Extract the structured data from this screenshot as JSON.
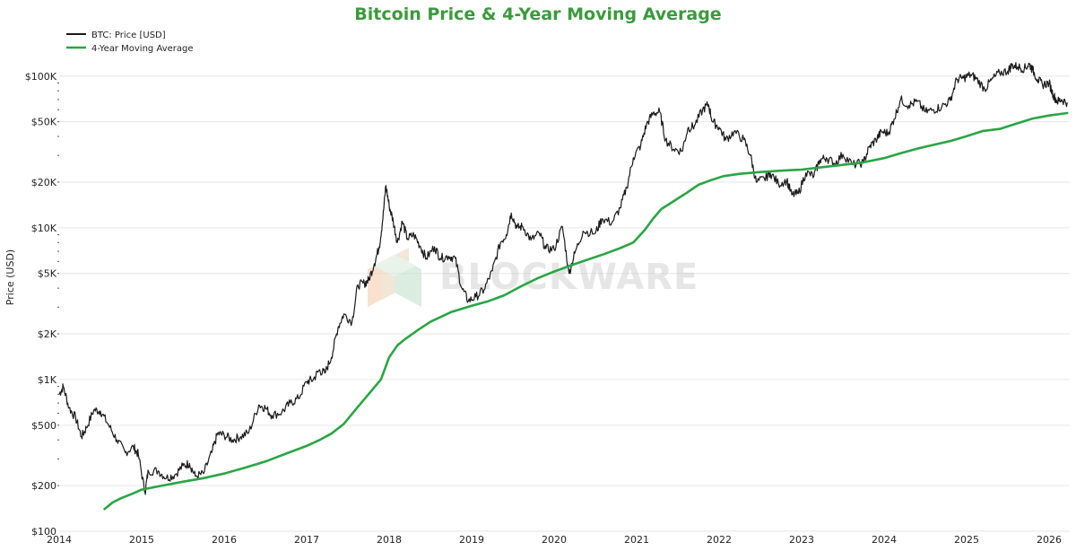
{
  "chart_data": {
    "type": "line",
    "title": "Bitcoin Price & 4-Year Moving Average",
    "xlabel": "",
    "ylabel": "Price (USD)",
    "yscale": "log",
    "xlim": [
      2014.0,
      2026.25
    ],
    "ylim": [
      100,
      150000
    ],
    "x_ticks": [
      {
        "v": 2014,
        "label": "2014"
      },
      {
        "v": 2015,
        "label": "2015"
      },
      {
        "v": 2016,
        "label": "2016"
      },
      {
        "v": 2017,
        "label": "2017"
      },
      {
        "v": 2018,
        "label": "2018"
      },
      {
        "v": 2019,
        "label": "2019"
      },
      {
        "v": 2020,
        "label": "2020"
      },
      {
        "v": 2021,
        "label": "2021"
      },
      {
        "v": 2022,
        "label": "2022"
      },
      {
        "v": 2023,
        "label": "2023"
      },
      {
        "v": 2024,
        "label": "2024"
      },
      {
        "v": 2025,
        "label": "2025"
      },
      {
        "v": 2026,
        "label": "2026"
      }
    ],
    "y_ticks": [
      {
        "v": 100,
        "label": "$100"
      },
      {
        "v": 200,
        "label": "$200"
      },
      {
        "v": 500,
        "label": "$500"
      },
      {
        "v": 1000,
        "label": "$1K"
      },
      {
        "v": 2000,
        "label": "$2K"
      },
      {
        "v": 5000,
        "label": "$5K"
      },
      {
        "v": 10000,
        "label": "$10K"
      },
      {
        "v": 20000,
        "label": "$20K"
      },
      {
        "v": 50000,
        "label": "$50K"
      },
      {
        "v": 100000,
        "label": "$100K"
      }
    ],
    "legend_position": "top-left",
    "series": [
      {
        "name": "BTC: Price [USD]",
        "color": "#1a1a1a",
        "points": [
          [
            2014.0,
            800
          ],
          [
            2014.05,
            900
          ],
          [
            2014.12,
            650
          ],
          [
            2014.2,
            560
          ],
          [
            2014.27,
            420
          ],
          [
            2014.33,
            480
          ],
          [
            2014.42,
            630
          ],
          [
            2014.5,
            620
          ],
          [
            2014.6,
            500
          ],
          [
            2014.7,
            400
          ],
          [
            2014.8,
            330
          ],
          [
            2014.9,
            360
          ],
          [
            2014.96,
            320
          ],
          [
            2015.04,
            180
          ],
          [
            2015.08,
            250
          ],
          [
            2015.2,
            250
          ],
          [
            2015.3,
            225
          ],
          [
            2015.4,
            235
          ],
          [
            2015.5,
            270
          ],
          [
            2015.58,
            280
          ],
          [
            2015.65,
            230
          ],
          [
            2015.75,
            240
          ],
          [
            2015.85,
            330
          ],
          [
            2015.92,
            440
          ],
          [
            2016.0,
            430
          ],
          [
            2016.1,
            400
          ],
          [
            2016.2,
            420
          ],
          [
            2016.3,
            450
          ],
          [
            2016.42,
            680
          ],
          [
            2016.5,
            650
          ],
          [
            2016.58,
            580
          ],
          [
            2016.7,
            610
          ],
          [
            2016.8,
            700
          ],
          [
            2016.9,
            750
          ],
          [
            2017.0,
            970
          ],
          [
            2017.08,
            1000
          ],
          [
            2017.15,
            1150
          ],
          [
            2017.22,
            1100
          ],
          [
            2017.3,
            1400
          ],
          [
            2017.38,
            2200
          ],
          [
            2017.45,
            2700
          ],
          [
            2017.55,
            2400
          ],
          [
            2017.62,
            4200
          ],
          [
            2017.7,
            4300
          ],
          [
            2017.75,
            4500
          ],
          [
            2017.82,
            5800
          ],
          [
            2017.88,
            7500
          ],
          [
            2017.92,
            11000
          ],
          [
            2017.96,
            19000
          ],
          [
            2018.0,
            14000
          ],
          [
            2018.05,
            11000
          ],
          [
            2018.1,
            8000
          ],
          [
            2018.16,
            11000
          ],
          [
            2018.22,
            8500
          ],
          [
            2018.3,
            9000
          ],
          [
            2018.38,
            7500
          ],
          [
            2018.45,
            6300
          ],
          [
            2018.55,
            7500
          ],
          [
            2018.62,
            6300
          ],
          [
            2018.72,
            6500
          ],
          [
            2018.8,
            6300
          ],
          [
            2018.88,
            4000
          ],
          [
            2018.96,
            3300
          ],
          [
            2019.05,
            3500
          ],
          [
            2019.15,
            3900
          ],
          [
            2019.25,
            5200
          ],
          [
            2019.35,
            8000
          ],
          [
            2019.42,
            9000
          ],
          [
            2019.48,
            12500
          ],
          [
            2019.55,
            10000
          ],
          [
            2019.62,
            10200
          ],
          [
            2019.72,
            8300
          ],
          [
            2019.82,
            9200
          ],
          [
            2019.9,
            7300
          ],
          [
            2020.0,
            7200
          ],
          [
            2020.1,
            10200
          ],
          [
            2020.18,
            5000
          ],
          [
            2020.25,
            6800
          ],
          [
            2020.35,
            9500
          ],
          [
            2020.5,
            9200
          ],
          [
            2020.58,
            11500
          ],
          [
            2020.7,
            10800
          ],
          [
            2020.8,
            13500
          ],
          [
            2020.88,
            18500
          ],
          [
            2020.96,
            29000
          ],
          [
            2021.05,
            35000
          ],
          [
            2021.12,
            48000
          ],
          [
            2021.2,
            57000
          ],
          [
            2021.28,
            58000
          ],
          [
            2021.35,
            38000
          ],
          [
            2021.45,
            33000
          ],
          [
            2021.55,
            32000
          ],
          [
            2021.62,
            45000
          ],
          [
            2021.7,
            47000
          ],
          [
            2021.8,
            60000
          ],
          [
            2021.87,
            65000
          ],
          [
            2021.92,
            50000
          ],
          [
            2022.0,
            46000
          ],
          [
            2022.08,
            38000
          ],
          [
            2022.18,
            43000
          ],
          [
            2022.3,
            38000
          ],
          [
            2022.38,
            30000
          ],
          [
            2022.45,
            20000
          ],
          [
            2022.55,
            21000
          ],
          [
            2022.62,
            23000
          ],
          [
            2022.72,
            19500
          ],
          [
            2022.82,
            20500
          ],
          [
            2022.88,
            16500
          ],
          [
            2022.96,
            16800
          ],
          [
            2023.05,
            23000
          ],
          [
            2023.15,
            22000
          ],
          [
            2023.22,
            28000
          ],
          [
            2023.3,
            29000
          ],
          [
            2023.4,
            26500
          ],
          [
            2023.5,
            30500
          ],
          [
            2023.62,
            26000
          ],
          [
            2023.75,
            27000
          ],
          [
            2023.82,
            34000
          ],
          [
            2023.9,
            38000
          ],
          [
            2023.97,
            43000
          ],
          [
            2024.05,
            42000
          ],
          [
            2024.12,
            52000
          ],
          [
            2024.2,
            70000
          ],
          [
            2024.3,
            64000
          ],
          [
            2024.4,
            68000
          ],
          [
            2024.5,
            58000
          ],
          [
            2024.6,
            60000
          ],
          [
            2024.7,
            63000
          ],
          [
            2024.8,
            69000
          ],
          [
            2024.88,
            95000
          ],
          [
            2024.96,
            97000
          ],
          [
            2025.05,
            102000
          ],
          [
            2025.12,
            96000
          ],
          [
            2025.22,
            82000
          ],
          [
            2025.3,
            94000
          ],
          [
            2025.4,
            105000
          ],
          [
            2025.5,
            108000
          ],
          [
            2025.55,
            118000
          ],
          [
            2025.62,
            115000
          ],
          [
            2025.7,
            112000
          ],
          [
            2025.76,
            120000
          ],
          [
            2025.8,
            110000
          ],
          [
            2025.86,
            95000
          ],
          [
            2025.92,
            88000
          ],
          [
            2026.0,
            90000
          ],
          [
            2026.05,
            75000
          ],
          [
            2026.1,
            68000
          ],
          [
            2026.15,
            70000
          ],
          [
            2026.22,
            67000
          ]
        ]
      },
      {
        "name": "4-Year Moving Average",
        "color": "#2aa545",
        "points": [
          [
            2014.55,
            140
          ],
          [
            2014.65,
            155
          ],
          [
            2014.75,
            165
          ],
          [
            2014.9,
            178
          ],
          [
            2015.0,
            188
          ],
          [
            2015.25,
            200
          ],
          [
            2015.5,
            212
          ],
          [
            2015.75,
            224
          ],
          [
            2016.0,
            240
          ],
          [
            2016.25,
            262
          ],
          [
            2016.5,
            288
          ],
          [
            2016.75,
            325
          ],
          [
            2017.0,
            365
          ],
          [
            2017.15,
            398
          ],
          [
            2017.3,
            440
          ],
          [
            2017.45,
            510
          ],
          [
            2017.6,
            640
          ],
          [
            2017.75,
            800
          ],
          [
            2017.9,
            1000
          ],
          [
            2018.0,
            1400
          ],
          [
            2018.1,
            1680
          ],
          [
            2018.2,
            1860
          ],
          [
            2018.35,
            2120
          ],
          [
            2018.5,
            2400
          ],
          [
            2018.75,
            2780
          ],
          [
            2019.0,
            3060
          ],
          [
            2019.2,
            3280
          ],
          [
            2019.4,
            3600
          ],
          [
            2019.6,
            4120
          ],
          [
            2019.8,
            4650
          ],
          [
            2020.0,
            5150
          ],
          [
            2020.2,
            5650
          ],
          [
            2020.4,
            6150
          ],
          [
            2020.6,
            6700
          ],
          [
            2020.8,
            7350
          ],
          [
            2020.96,
            8000
          ],
          [
            2021.1,
            9700
          ],
          [
            2021.2,
            11500
          ],
          [
            2021.3,
            13300
          ],
          [
            2021.45,
            15000
          ],
          [
            2021.6,
            16900
          ],
          [
            2021.75,
            19200
          ],
          [
            2021.9,
            20600
          ],
          [
            2022.05,
            21900
          ],
          [
            2022.25,
            22700
          ],
          [
            2022.5,
            23300
          ],
          [
            2022.75,
            23800
          ],
          [
            2023.0,
            24200
          ],
          [
            2023.25,
            25100
          ],
          [
            2023.5,
            26000
          ],
          [
            2023.75,
            27000
          ],
          [
            2024.0,
            28800
          ],
          [
            2024.2,
            31000
          ],
          [
            2024.4,
            33200
          ],
          [
            2024.6,
            35200
          ],
          [
            2024.8,
            37300
          ],
          [
            2025.0,
            40200
          ],
          [
            2025.2,
            43500
          ],
          [
            2025.4,
            44800
          ],
          [
            2025.6,
            48500
          ],
          [
            2025.8,
            52500
          ],
          [
            2026.0,
            55000
          ],
          [
            2026.22,
            57000
          ]
        ]
      }
    ],
    "watermark": "BLOCKWARE"
  }
}
